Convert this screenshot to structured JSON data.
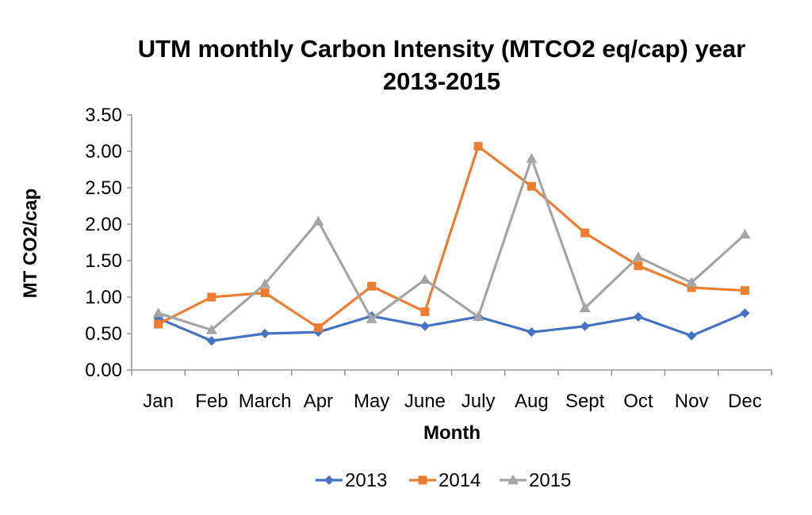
{
  "chart_data": {
    "type": "line",
    "title": "UTM monthly Carbon Intensity (MTCO2 eq/cap) year 2013-2015",
    "title_lines": [
      "UTM monthly Carbon Intensity (MTCO2 eq/cap) year",
      "2013-2015"
    ],
    "xlabel": "Month",
    "ylabel": "MT CO2/cap",
    "categories": [
      "Jan",
      "Feb",
      "March",
      "Apr",
      "May",
      "June",
      "July",
      "Aug",
      "Sept",
      "Oct",
      "Nov",
      "Dec"
    ],
    "ylim": [
      0,
      3.5
    ],
    "yticks": [
      "0.00",
      "0.50",
      "1.00",
      "1.50",
      "2.00",
      "2.50",
      "3.00",
      "3.50"
    ],
    "grid": false,
    "legend_position": "bottom",
    "series": [
      {
        "name": "2013",
        "color": "#4472C4",
        "marker": "diamond",
        "values": [
          0.71,
          0.4,
          0.5,
          0.52,
          0.74,
          0.6,
          0.73,
          0.52,
          0.6,
          0.73,
          0.47,
          0.78
        ]
      },
      {
        "name": "2014",
        "color": "#ED7D31",
        "marker": "square",
        "values": [
          0.63,
          1.0,
          1.06,
          0.58,
          1.15,
          0.8,
          3.07,
          2.52,
          1.88,
          1.43,
          1.13,
          1.09
        ]
      },
      {
        "name": "2015",
        "color": "#A5A5A5",
        "marker": "triangle",
        "values": [
          0.78,
          0.55,
          1.18,
          2.04,
          0.7,
          1.24,
          0.73,
          2.9,
          0.85,
          1.55,
          1.2,
          1.86
        ]
      }
    ]
  }
}
